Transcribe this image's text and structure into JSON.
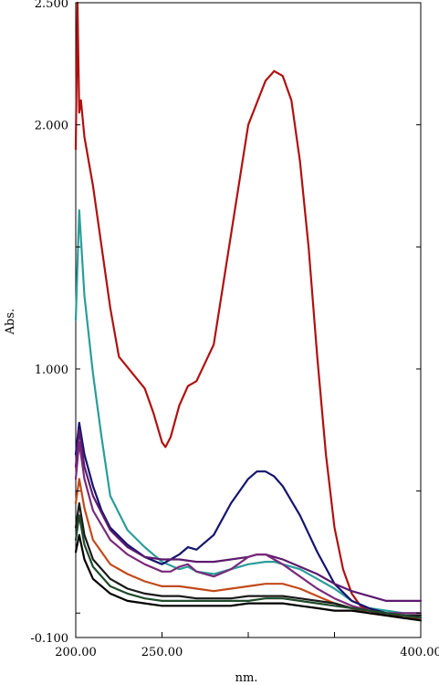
{
  "chart_data": {
    "type": "line",
    "xlabel": "nm.",
    "ylabel": "Abs.",
    "xlim": [
      200,
      400
    ],
    "ylim": [
      -0.1,
      2.5
    ],
    "x_ticks": [
      {
        "value": 200,
        "label": "200.00"
      },
      {
        "value": 250,
        "label": "250.00"
      },
      {
        "value": 300,
        "label": ""
      },
      {
        "value": 350,
        "label": ""
      },
      {
        "value": 400,
        "label": "400.00"
      }
    ],
    "y_ticks": [
      {
        "value": -0.1,
        "label": "-0.100"
      },
      {
        "value": 0.0,
        "label": ""
      },
      {
        "value": 0.5,
        "label": ""
      },
      {
        "value": 1.0,
        "label": "1.000"
      },
      {
        "value": 1.5,
        "label": ""
      },
      {
        "value": 2.0,
        "label": "2.000"
      },
      {
        "value": 2.5,
        "label": "2.500"
      }
    ],
    "series": [
      {
        "color": "#b01010",
        "x": [
          200,
          201,
          202,
          203,
          205,
          210,
          220,
          225,
          240,
          245,
          250,
          252,
          255,
          260,
          265,
          270,
          280,
          290,
          300,
          310,
          315,
          320,
          325,
          330,
          335,
          340,
          345,
          350,
          355,
          360,
          365,
          370,
          375,
          380,
          385,
          390,
          395,
          400
        ],
        "y": [
          1.9,
          2.5,
          2.05,
          2.1,
          1.95,
          1.75,
          1.25,
          1.05,
          0.92,
          0.82,
          0.7,
          0.68,
          0.72,
          0.85,
          0.93,
          0.95,
          1.1,
          1.55,
          2.0,
          2.18,
          2.22,
          2.2,
          2.1,
          1.85,
          1.5,
          1.05,
          0.65,
          0.35,
          0.18,
          0.08,
          0.03,
          0.01,
          0.0,
          -0.01,
          -0.01,
          -0.02,
          -0.02,
          -0.02
        ]
      },
      {
        "color": "#2a9d9a",
        "x": [
          200,
          202,
          205,
          210,
          215,
          220,
          230,
          240,
          250,
          260,
          265,
          270,
          280,
          290,
          300,
          310,
          315,
          320,
          330,
          340,
          350,
          360,
          370,
          380,
          390,
          400
        ],
        "y": [
          1.2,
          1.65,
          1.3,
          0.98,
          0.72,
          0.48,
          0.34,
          0.27,
          0.21,
          0.18,
          0.19,
          0.17,
          0.16,
          0.18,
          0.2,
          0.21,
          0.21,
          0.2,
          0.18,
          0.14,
          0.1,
          0.05,
          0.02,
          0.01,
          0.0,
          0.0
        ]
      },
      {
        "color": "#14146e",
        "x": [
          200,
          202,
          205,
          210,
          215,
          220,
          230,
          240,
          250,
          255,
          260,
          265,
          270,
          280,
          290,
          300,
          305,
          310,
          315,
          320,
          330,
          340,
          350,
          360,
          370,
          380,
          390,
          400
        ],
        "y": [
          0.65,
          0.78,
          0.65,
          0.52,
          0.42,
          0.35,
          0.28,
          0.23,
          0.2,
          0.22,
          0.24,
          0.27,
          0.26,
          0.32,
          0.45,
          0.55,
          0.58,
          0.58,
          0.56,
          0.52,
          0.4,
          0.25,
          0.12,
          0.05,
          0.02,
          0.0,
          -0.01,
          -0.02
        ]
      },
      {
        "color": "#5b1a6e",
        "x": [
          200,
          202,
          205,
          210,
          220,
          230,
          240,
          250,
          260,
          270,
          280,
          290,
          300,
          305,
          310,
          315,
          320,
          330,
          340,
          350,
          360,
          370,
          380,
          390,
          400
        ],
        "y": [
          0.6,
          0.75,
          0.6,
          0.48,
          0.34,
          0.27,
          0.23,
          0.22,
          0.22,
          0.21,
          0.21,
          0.22,
          0.23,
          0.24,
          0.24,
          0.23,
          0.22,
          0.19,
          0.16,
          0.12,
          0.09,
          0.07,
          0.05,
          0.05,
          0.05
        ]
      },
      {
        "color": "#7a2a7a",
        "x": [
          200,
          202,
          205,
          210,
          220,
          230,
          240,
          250,
          255,
          260,
          265,
          270,
          280,
          290,
          300,
          305,
          310,
          315,
          320,
          330,
          340,
          350,
          360,
          370,
          380,
          390,
          400
        ],
        "y": [
          0.55,
          0.7,
          0.55,
          0.42,
          0.3,
          0.24,
          0.2,
          0.17,
          0.17,
          0.19,
          0.2,
          0.17,
          0.15,
          0.18,
          0.23,
          0.24,
          0.24,
          0.22,
          0.2,
          0.15,
          0.1,
          0.06,
          0.03,
          0.01,
          0.0,
          0.0,
          0.0
        ]
      },
      {
        "color": "#c24a1a",
        "x": [
          200,
          202,
          205,
          210,
          220,
          230,
          240,
          250,
          260,
          270,
          280,
          290,
          300,
          310,
          320,
          330,
          340,
          350,
          360,
          370,
          380,
          390,
          400
        ],
        "y": [
          0.45,
          0.55,
          0.43,
          0.3,
          0.2,
          0.16,
          0.13,
          0.11,
          0.11,
          0.1,
          0.09,
          0.1,
          0.11,
          0.12,
          0.12,
          0.1,
          0.07,
          0.04,
          0.02,
          0.0,
          -0.01,
          -0.02,
          -0.02
        ]
      },
      {
        "color": "#1a1a1a",
        "x": [
          200,
          202,
          205,
          210,
          220,
          230,
          240,
          250,
          260,
          270,
          280,
          290,
          300,
          310,
          320,
          330,
          340,
          350,
          360,
          370,
          380,
          390,
          400
        ],
        "y": [
          0.35,
          0.45,
          0.32,
          0.22,
          0.14,
          0.1,
          0.08,
          0.07,
          0.07,
          0.06,
          0.06,
          0.06,
          0.07,
          0.07,
          0.07,
          0.06,
          0.05,
          0.04,
          0.02,
          0.01,
          0.0,
          -0.01,
          -0.01
        ]
      },
      {
        "color": "#1e4a2a",
        "x": [
          200,
          202,
          205,
          210,
          220,
          230,
          240,
          250,
          260,
          270,
          280,
          290,
          300,
          310,
          320,
          330,
          340,
          350,
          360,
          370,
          380,
          390,
          400
        ],
        "y": [
          0.3,
          0.4,
          0.28,
          0.19,
          0.11,
          0.08,
          0.06,
          0.05,
          0.05,
          0.05,
          0.05,
          0.05,
          0.05,
          0.06,
          0.06,
          0.05,
          0.04,
          0.03,
          0.02,
          0.01,
          0.0,
          -0.01,
          -0.02
        ]
      },
      {
        "color": "#000000",
        "x": [
          200,
          202,
          205,
          210,
          220,
          230,
          240,
          250,
          260,
          270,
          280,
          290,
          300,
          310,
          320,
          330,
          340,
          350,
          360,
          370,
          380,
          390,
          400
        ],
        "y": [
          0.25,
          0.32,
          0.22,
          0.14,
          0.08,
          0.05,
          0.04,
          0.03,
          0.03,
          0.03,
          0.03,
          0.03,
          0.04,
          0.04,
          0.04,
          0.03,
          0.02,
          0.01,
          0.01,
          0.0,
          -0.01,
          -0.02,
          -0.03
        ]
      }
    ]
  }
}
